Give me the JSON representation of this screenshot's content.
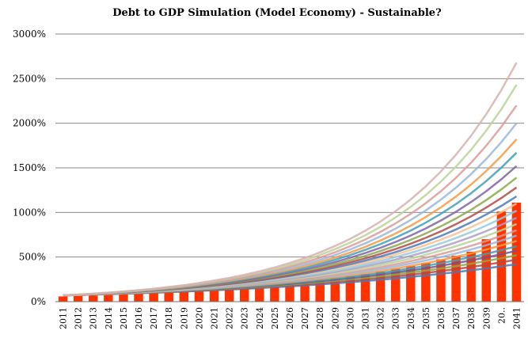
{
  "chart_data": {
    "type": "bar",
    "title": "Debt to GDP Simulation (Model Economy)  - Sustainable?",
    "xlabel": "",
    "ylabel": "",
    "ylim": [
      0,
      3000
    ],
    "yticks": [
      0,
      500,
      1000,
      1500,
      2000,
      2500,
      3000
    ],
    "ytick_labels": [
      "0%",
      "500%",
      "1000%",
      "1500%",
      "2000%",
      "2500%",
      "3000%"
    ],
    "grid": true,
    "legend": "none",
    "categories": [
      "2011",
      "2012",
      "2013",
      "2014",
      "2015",
      "2016",
      "2017",
      "2018",
      "2019",
      "2020",
      "2021",
      "2022",
      "2023",
      "2024",
      "2025",
      "2026",
      "2027",
      "2028",
      "2029",
      "2030",
      "2031",
      "2032",
      "2033",
      "2034",
      "2035",
      "2036",
      "2037",
      "2038",
      "2039",
      "20..",
      "2041"
    ],
    "series": [
      {
        "type": "bar",
        "color": "#ff3300",
        "values": [
          58,
          63,
          68,
          74,
          81,
          88,
          96,
          104,
          113,
          123,
          134,
          146,
          158,
          172,
          187,
          204,
          222,
          241,
          262,
          286,
          311,
          338,
          368,
          400,
          435,
          474,
          515,
          560,
          700,
          1010,
          1110
        ]
      }
    ],
    "line_series": {
      "start_value": 70,
      "end_values": [
        420,
        470,
        520,
        570,
        620,
        680,
        740,
        800,
        870,
        940,
        1020,
        1100,
        1180,
        1280,
        1390,
        1520,
        1670,
        1820,
        2000,
        2200,
        2430,
        2680
      ],
      "colors": [
        "#4a7ab8",
        "#b24a48",
        "#8aa84c",
        "#6d5690",
        "#3f9fb8",
        "#f29a45",
        "#98b6d8",
        "#d89a98",
        "#bcd197",
        "#ad9dc5",
        "#93cadb",
        "#fac090",
        "#4a7ab8",
        "#b24a48",
        "#8aa84c",
        "#7f64a2",
        "#3f9fb8",
        "#f29a45",
        "#98b6d8",
        "#d89a98",
        "#bcd197",
        "#d8b0b0"
      ]
    }
  }
}
